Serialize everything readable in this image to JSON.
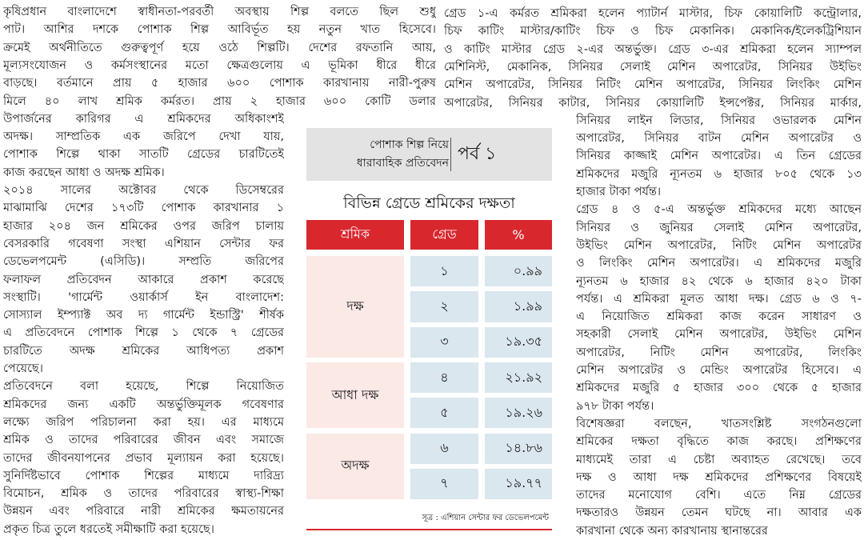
{
  "left_column": {
    "paragraphs": [
      [
        "কৃষিপ্রধান বাংলাদেশে স্বাধীনতা-পরবর্তী অবস্থায় শিল্প বলতে ছিল শুধু",
        "পাট। আশির দশকে পোশাক শিল্প আবির্ভূত হয় নতুন খাত হিসেবে।",
        "ক্রমেই অর্থনীতিতে গুরুত্বপূর্ণ হয়ে ওঠে শিল্পটি। দেশের রফতানি আয়,",
        "মূল্যসংযোজন ও কর্মসংস্থানের মতো ক্ষেত্রগুলোয় এ ভূমিকা ধীরে ধীরে",
        "বাড়ছে। বর্তমানে প্রায় ৫ হাজার ৬০০ পোশাক কারখানায় নারী-পুরুষ",
        "মিলে ৪০ লাখ শ্রমিক কর্মরত। প্রায় ২ হাজার ৬০০ কোটি ডলার",
        "উপার্জনের কারিগর এ শ্রমিকদের অধিকাংশই",
        "অদক্ষ। সাম্প্রতিক এক জরিপে দেখা যায়,",
        "পোশাক শিল্পে থাকা সাতটি গ্রেডের চারটিতেই",
        "কাজ করছেন আধা ও অদক্ষ শ্রমিক।"
      ],
      [
        "২০১৪ সালের অক্টোবর থেকে ডিসেম্বরের",
        "মাঝামাঝি দেশের ১৭৩টি পোশাক কারখানার ১",
        "হাজার ২০৪ জন শ্রমিকের ওপর জরিপ চালায়",
        "বেসরকারি গবেষণা সংস্থা এশিয়ান সেন্টার ফর",
        "ডেভেলপমেন্ট (এসিডি)। সম্প্রতি জরিপের",
        "ফলাফল প্রতিবেদন আকারে প্রকাশ করেছে",
        "সংস্থাটি। 'গার্মেন্ট ওয়ার্কার্স ইন বাংলাদেশ:",
        "সোস্যাল ইম্প্যাক্ট অব দ্য গার্মেন্ট ইন্ডাস্ট্রি' শীর্ষক",
        "এ প্রতিবেদনে পোশাক শিল্পে ১ থেকে ৭ গ্রেডের",
        "চারটিতে অদক্ষ শ্রমিকের আধিপত্য প্রকাশ",
        "পেয়েছে।"
      ],
      [
        "প্রতিবেদনে বলা হয়েছে, শিল্পে নিয়োজিত",
        "শ্রমিকদের জন্য একটি অন্তর্ভুক্তিমূলক গবেষণার",
        "লক্ষ্যে জরিপ পরিচালনা করা হয়। এর মাধ্যমে",
        "শ্রমিক ও তাদের পরিবারের জীবন এবং সমাজে",
        "তাদের জীবনযাপনের প্রভাব মূল্যায়ন করা হয়েছে।",
        "সুনির্দিষ্টভাবে পোশাক শিল্পের মাধ্যমে দারিদ্র্য",
        "বিমোচন, শ্রমিক ও তাদের পরিবারের স্বাস্থ্য-শিক্ষা",
        "উন্নয়ন এবং পরিবারে নারী শ্রমিকের ক্ষমতায়নের",
        "প্রকৃত চিত্র তুলে ধরতেই সমীক্ষাটি করা হয়েছে।"
      ]
    ]
  },
  "right_column": {
    "paragraphs": [
      [
        "গ্রেড ১-এ কর্মরত শ্রমিকরা হলেন প্যাটার্ন মাস্টার, চিফ কোয়ালিটি কন্ট্রোলার,",
        "চিফ কাটিং মাস্টার/কাটিং চিফ ও চিফ মেকানিক। মেকানিক/ইলেকট্রিশিয়ান",
        "ও কাটিং মাস্টার গ্রেড ২-এর অন্তর্ভুক্ত। গ্রেড ৩-এর শ্রমিকরা হলেন স্যাম্পল",
        "মেশিনিস্ট, মেকানিক, সিনিয়র সেলাই মেশিন অপারেটর, সিনিয়র উইভিং",
        "মেশিন অপারেটর, সিনিয়র নিটিং মেশিন অপারেটর, সিনিয়র লিংকিং মেশিন",
        "অপারেটর, সিনিয়র কাটার, সিনিয়র কোয়ালিটি ইন্সপেক্টর, সিনিয়র মার্কার,",
        "সিনিয়র লাইন লিডার, সিনিয়র ওভারলক মেশিন",
        "অপারেটর, সিনিয়র বাটন মেশিন অপারেটর ও",
        "সিনিয়র কাজ্জাই মেশিন অপারেটর। এ তিন গ্রেডের",
        "শ্রমিকদের মজুরি ন্যূনতম ৬ হাজার ৮০৫ থেকে ১৩",
        "হাজার টাকা পর্যন্ত।"
      ],
      [
        "গ্রেড ৪ ও ৫-এ অন্তর্ভুক্ত শ্রমিকদের মধ্যে আছেন",
        "সিনিয়র ও জুনিয়র সেলাই মেশিন অপারেটর,",
        "উইভিং মেশিন অপারেটর, নিটিং মেশিন অপারেটর",
        "ও লিংকিং মেশিন অপারেটর। এ শ্রমিকদের মজুরি",
        "ন্যূনতম ৬ হাজার ৪২ থেকে ৬ হাজার ৪২০ টাকা",
        "পর্যন্ত। এ শ্রমিকরা মূলত আধা দক্ষ। গ্রেড ৬ ও ৭-",
        "এ নিয়োজিত শ্রমিকরা কাজ করেন সাধারণ ও",
        "সহকারী সেলাই মেশিন অপারেটর, উইভিং মেশিন",
        "অপারেটর, নিটিং মেশিন অপারেটর, লিংকিং",
        "মেশিন অপারেটর ও মেন্ডিং অপারেটর হিসেবে। এ",
        "শ্রমিকদের মজুরি ৫ হাজার ৩০০ থেকে ৫ হাজার",
        "৯৭৮ টাকা পর্যন্ত।"
      ],
      [
        "বিশেষজ্ঞরা বলছেন, খাতসংশ্লিষ্ট সংগঠনগুলো",
        "শ্রমিকের দক্ষতা বৃদ্ধিতে কাজ করছে। প্রশিক্ষণের",
        "মাধ্যমেই তারা এ চেষ্টা অব্যাহত রেখেছে। তবে",
        "দক্ষ ও আধা দক্ষ শ্রমিকদের প্রশিক্ষণের বিষয়েই",
        "তাদের মনোযোগ বেশি। এতে নিম্ন গ্রেডের",
        "দক্ষতারও উন্নয়ন তেমন ঘটছে না। আবার এক",
        "কারখানা থেকে অন্য কারখানায় স্থানান্তরের"
      ]
    ]
  },
  "box": {
    "series_label": [
      "পোশাক শিল্প নিয়ে",
      "ধারাবাহিক প্রতিবেদন"
    ],
    "episode": "পর্ব ১",
    "table": {
      "title": "বিভিন্ন গ্রেডে শ্রমিকের দক্ষতা",
      "header": [
        "শ্রমিক",
        "গ্রেড",
        "%"
      ],
      "groups": [
        {
          "label": "দক্ষ",
          "rows": [
            [
              "১",
              "০.৯৯"
            ],
            [
              "২",
              "১.৯৯"
            ],
            [
              "৩",
              "১৯.৩৫"
            ]
          ]
        },
        {
          "label": "আধা দক্ষ",
          "rows": [
            [
              "৪",
              "২১.৯২"
            ],
            [
              "৫",
              "১৯.২৬"
            ]
          ]
        },
        {
          "label": "অদক্ষ",
          "rows": [
            [
              "৬",
              "১৪.৮৬"
            ],
            [
              "৭",
              "১৯.৭৭"
            ]
          ]
        }
      ],
      "source": "সূত্র : এশিয়ান সেন্টার ফর ডেভেলপমেন্ট"
    }
  }
}
